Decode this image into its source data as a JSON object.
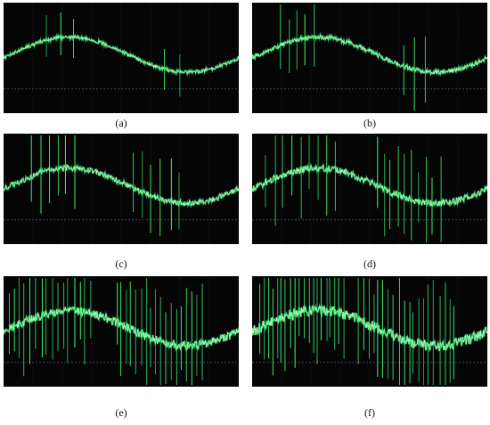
{
  "panels": [
    {
      "id": "a",
      "label": "(a)",
      "spike_groups": [
        [
          0.18,
          0.3,
          3
        ],
        [
          0.68,
          0.75,
          2
        ]
      ],
      "spike_height": 0.28,
      "noise": 0.015
    },
    {
      "id": "b",
      "label": "(b)",
      "spike_groups": [
        [
          0.12,
          0.26,
          5
        ],
        [
          0.64,
          0.74,
          3
        ]
      ],
      "spike_height": 0.42,
      "noise": 0.02
    },
    {
      "id": "c",
      "label": "(c)",
      "spike_groups": [
        [
          0.12,
          0.3,
          6
        ],
        [
          0.55,
          0.75,
          6
        ]
      ],
      "spike_height": 0.48,
      "noise": 0.025
    },
    {
      "id": "d",
      "label": "(d)",
      "spike_groups": [
        [
          0.06,
          0.35,
          9
        ],
        [
          0.53,
          0.8,
          10
        ]
      ],
      "spike_height": 0.5,
      "noise": 0.03
    },
    {
      "id": "e",
      "label": "(e)",
      "spike_groups": [
        [
          0.02,
          0.37,
          16
        ],
        [
          0.48,
          0.84,
          18
        ]
      ],
      "spike_height": 0.55,
      "noise": 0.04
    },
    {
      "id": "f",
      "label": "(f)",
      "spike_groups": [
        [
          0.03,
          0.39,
          20
        ],
        [
          0.45,
          0.86,
          20
        ]
      ],
      "spike_height": 0.6,
      "noise": 0.05
    }
  ],
  "colors": {
    "background": "#050505",
    "trace": "#3dff7a",
    "trace_glow": "#9dffb9",
    "grid": "#2a2f3a",
    "baseline": "#3a4a66",
    "caption": "#111111"
  }
}
